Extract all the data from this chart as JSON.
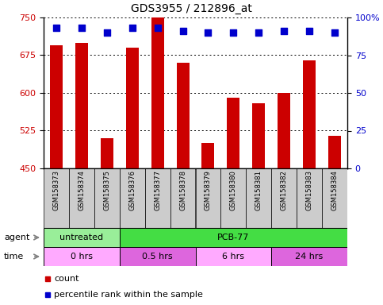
{
  "title": "GDS3955 / 212896_at",
  "samples": [
    "GSM158373",
    "GSM158374",
    "GSM158375",
    "GSM158376",
    "GSM158377",
    "GSM158378",
    "GSM158379",
    "GSM158380",
    "GSM158381",
    "GSM158382",
    "GSM158383",
    "GSM158384"
  ],
  "counts": [
    695,
    700,
    510,
    690,
    750,
    660,
    500,
    590,
    580,
    600,
    665,
    515
  ],
  "percentile": [
    93,
    93,
    90,
    93,
    93,
    91,
    90,
    90,
    90,
    91,
    91,
    90
  ],
  "ylim_left": [
    450,
    750
  ],
  "ylim_right": [
    0,
    100
  ],
  "yticks_left": [
    450,
    525,
    600,
    675,
    750
  ],
  "yticks_right": [
    0,
    25,
    50,
    75,
    100
  ],
  "bar_color": "#cc0000",
  "dot_color": "#0000cc",
  "plot_bg_color": "#ffffff",
  "agent_row": [
    {
      "label": "untreated",
      "start": 0,
      "end": 3,
      "color": "#99ee99"
    },
    {
      "label": "PCB-77",
      "start": 3,
      "end": 12,
      "color": "#44dd44"
    }
  ],
  "time_row": [
    {
      "label": "0 hrs",
      "start": 0,
      "end": 3,
      "color": "#ffaaff"
    },
    {
      "label": "0.5 hrs",
      "start": 3,
      "end": 6,
      "color": "#dd66dd"
    },
    {
      "label": "6 hrs",
      "start": 6,
      "end": 9,
      "color": "#ffaaff"
    },
    {
      "label": "24 hrs",
      "start": 9,
      "end": 12,
      "color": "#dd66dd"
    }
  ],
  "sample_bg_color": "#cccccc",
  "bar_width": 0.5,
  "dot_size": 28,
  "legend_items": [
    {
      "label": "count",
      "color": "#cc0000"
    },
    {
      "label": "percentile rank within the sample",
      "color": "#0000cc"
    }
  ]
}
